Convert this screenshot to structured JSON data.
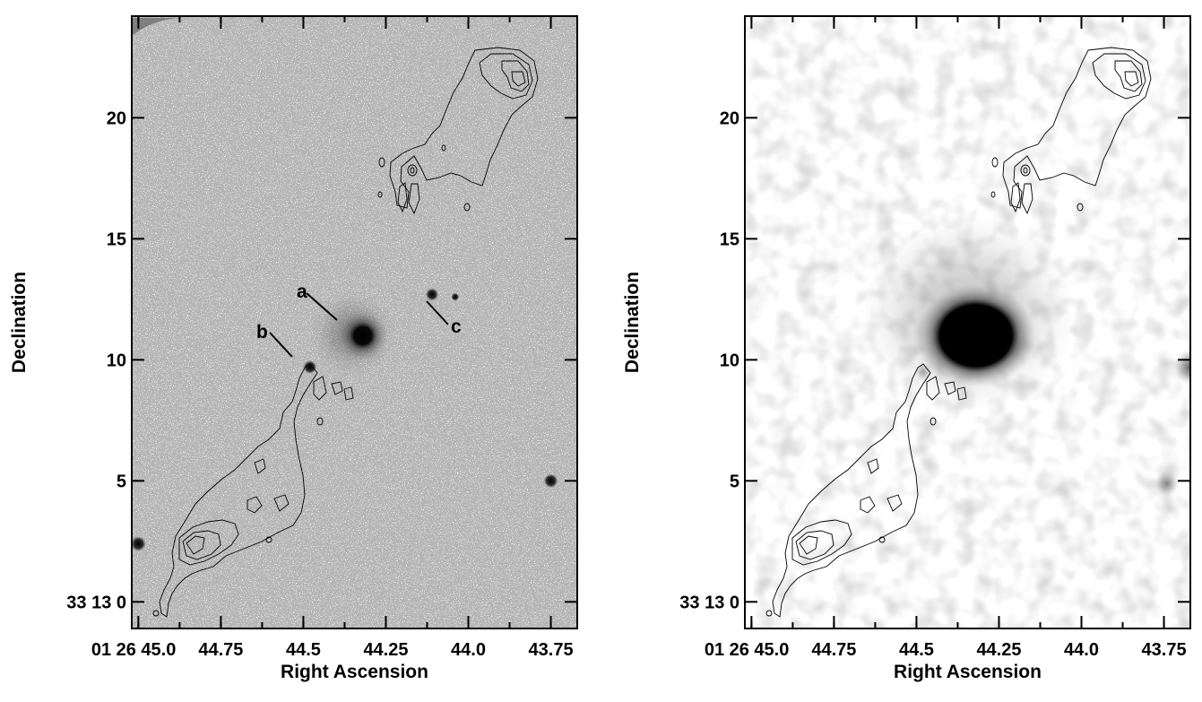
{
  "figure": {
    "panels": [
      {
        "id": "optical",
        "x_axis": {
          "label": "Right Ascension",
          "ticks": [
            {
              "value": 45.0,
              "label": "01 26 45.0"
            },
            {
              "value": 44.75,
              "label": "44.75"
            },
            {
              "value": 44.5,
              "label": "44.5"
            },
            {
              "value": 44.25,
              "label": "44.25"
            },
            {
              "value": 44.0,
              "label": "44.0"
            },
            {
              "value": 43.75,
              "label": "43.75"
            }
          ],
          "range": [
            45.02,
            43.67
          ]
        },
        "y_axis": {
          "label": "Declination",
          "ticks": [
            {
              "value": 0,
              "label": "33 13 0"
            },
            {
              "value": 5,
              "label": "5"
            },
            {
              "value": 10,
              "label": "10"
            },
            {
              "value": 15,
              "label": "15"
            },
            {
              "value": 20,
              "label": "20"
            }
          ],
          "range": [
            -1.1,
            24.2
          ]
        },
        "source_markers": [
          {
            "label": "a"
          },
          {
            "label": "b"
          },
          {
            "label": "c"
          }
        ],
        "sources": [
          {
            "ra": 44.32,
            "dec": 11.0,
            "level": 1.0
          },
          {
            "ra": 44.48,
            "dec": 9.7,
            "level": 0.85
          },
          {
            "ra": 44.11,
            "dec": 12.7,
            "level": 0.8
          },
          {
            "ra": 43.75,
            "dec": 5.0,
            "level": 0.9
          },
          {
            "ra": 45.0,
            "dec": 2.4,
            "level": 0.95
          },
          {
            "ra": 44.04,
            "dec": 12.6,
            "level": 0.5
          }
        ]
      },
      {
        "id": "smoothed",
        "x_axis": {
          "label": "Right Ascension",
          "ticks": [
            {
              "value": 45.0,
              "label": "01 26 45.0"
            },
            {
              "value": 44.75,
              "label": "44.75"
            },
            {
              "value": 44.5,
              "label": "44.5"
            },
            {
              "value": 44.25,
              "label": "44.25"
            },
            {
              "value": 44.0,
              "label": "44.0"
            },
            {
              "value": 43.75,
              "label": "43.75"
            }
          ],
          "range": [
            45.02,
            43.67
          ]
        },
        "y_axis": {
          "label": "Declination",
          "ticks": [
            {
              "value": 0,
              "label": "33 13 0"
            },
            {
              "value": 5,
              "label": "5"
            },
            {
              "value": 10,
              "label": "10"
            },
            {
              "value": 15,
              "label": "15"
            },
            {
              "value": 20,
              "label": "20"
            }
          ],
          "range": [
            -1.1,
            24.2
          ]
        },
        "sources": [
          {
            "ra": 44.32,
            "dec": 11.0,
            "level": 1.0
          },
          {
            "ra": 43.67,
            "dec": 9.7,
            "level": 0.75
          },
          {
            "ra": 43.74,
            "dec": 4.9,
            "level": 0.55
          },
          {
            "ra": 44.48,
            "dec": 9.5,
            "level": 0.4
          }
        ]
      }
    ]
  }
}
